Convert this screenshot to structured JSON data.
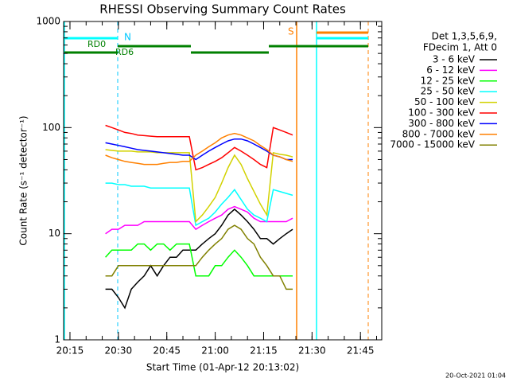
{
  "chart_data": {
    "type": "line",
    "title": "RHESSI Observing Summary Count Rates",
    "xlabel": "Start Time (01-Apr-12 20:13:02)",
    "ylabel": "Count Rate (s⁻¹ detector⁻¹)",
    "log_y": true,
    "xlim": [
      "20:13:02",
      "21:51:36"
    ],
    "xticks": [
      "20:15",
      "20:30",
      "20:45",
      "21:00",
      "21:15",
      "21:30",
      "21:45"
    ],
    "ylim": [
      1,
      1000
    ],
    "yticks": [
      1,
      10,
      100,
      1000
    ],
    "legend_title": [
      "Det 1,3,5,6,9,",
      "FDecim 1, Att 0"
    ],
    "annotations": [
      "N",
      "S",
      "RD0",
      "RD6"
    ],
    "footer": "20-Oct-2021 01:04",
    "x": [
      "20:26",
      "20:28",
      "20:30",
      "20:32",
      "20:34",
      "20:36",
      "20:38",
      "20:40",
      "20:42",
      "20:44",
      "20:46",
      "20:48",
      "20:50",
      "20:52",
      "20:54",
      "20:56",
      "20:58",
      "21:00",
      "21:02",
      "21:04",
      "21:06",
      "21:08",
      "21:10",
      "21:12",
      "21:14",
      "21:16",
      "21:18",
      "21:20",
      "21:22",
      "21:24"
    ],
    "series": [
      {
        "name": "3 - 6 keV",
        "color": "#000000",
        "values": [
          3,
          3,
          2.5,
          2,
          3,
          3.5,
          4,
          5,
          4,
          5,
          6,
          6,
          7,
          7,
          7,
          8,
          9,
          10,
          12,
          15,
          17,
          15,
          13,
          11,
          9,
          9,
          8,
          9,
          10,
          11
        ]
      },
      {
        "name": "6 - 12 keV",
        "color": "#ff00ff",
        "values": [
          10,
          11,
          11,
          12,
          12,
          12,
          13,
          13,
          13,
          13,
          13,
          13,
          13,
          13,
          11,
          12,
          13,
          14,
          15,
          17,
          18,
          17,
          16,
          14,
          13,
          13,
          13,
          13,
          13,
          14
        ]
      },
      {
        "name": "12 - 25 keV",
        "color": "#00ff00",
        "values": [
          6,
          7,
          7,
          7,
          7,
          8,
          8,
          7,
          8,
          8,
          7,
          8,
          8,
          8,
          4,
          4,
          4,
          5,
          5,
          6,
          7,
          6,
          5,
          4,
          4,
          4,
          4,
          4,
          4,
          4
        ]
      },
      {
        "name": "25 - 50 keV",
        "color": "#00ffff",
        "values": [
          30,
          30,
          29,
          29,
          28,
          28,
          28,
          27,
          27,
          27,
          27,
          27,
          27,
          27,
          12,
          13,
          14,
          16,
          19,
          22,
          26,
          21,
          17,
          15,
          14,
          13,
          26,
          25,
          24,
          23
        ]
      },
      {
        "name": "50 - 100 keV",
        "color": "#d2d200",
        "values": [
          62,
          61,
          60,
          60,
          60,
          59,
          59,
          59,
          58,
          58,
          58,
          58,
          58,
          58,
          13,
          15,
          18,
          22,
          30,
          42,
          55,
          45,
          33,
          25,
          19,
          15,
          58,
          56,
          55,
          53
        ]
      },
      {
        "name": "100 - 300 keV",
        "color": "#ff0000",
        "values": [
          105,
          100,
          95,
          90,
          88,
          85,
          84,
          83,
          82,
          82,
          82,
          82,
          82,
          82,
          40,
          42,
          45,
          48,
          52,
          58,
          65,
          60,
          55,
          50,
          45,
          42,
          100,
          95,
          90,
          85
        ]
      },
      {
        "name": "300 - 800 keV",
        "color": "#0000ff",
        "values": [
          72,
          70,
          68,
          66,
          64,
          62,
          61,
          60,
          59,
          58,
          57,
          56,
          55,
          55,
          50,
          55,
          60,
          65,
          70,
          75,
          78,
          78,
          75,
          70,
          65,
          60,
          55,
          53,
          50,
          50
        ]
      },
      {
        "name": "800 - 7000 keV",
        "color": "#ff8000",
        "values": [
          55,
          52,
          50,
          48,
          47,
          46,
          45,
          45,
          45,
          46,
          47,
          47,
          48,
          48,
          55,
          60,
          66,
          72,
          80,
          85,
          88,
          85,
          80,
          75,
          68,
          62,
          55,
          53,
          50,
          48
        ]
      },
      {
        "name": "7000 - 15000 keV",
        "color": "#808000",
        "values": [
          4,
          4,
          5,
          5,
          5,
          5,
          5,
          5,
          5,
          5,
          5,
          5,
          5,
          5,
          5,
          6,
          7,
          8,
          9,
          11,
          12,
          11,
          9,
          8,
          6,
          5,
          4,
          4,
          3,
          3
        ]
      }
    ]
  }
}
